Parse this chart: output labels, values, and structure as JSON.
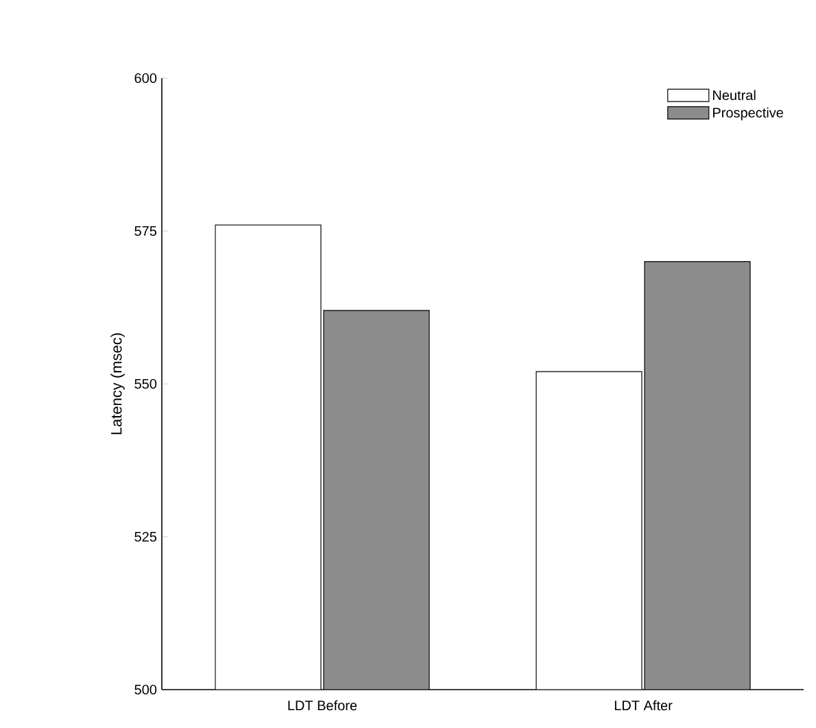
{
  "chart_data": {
    "type": "bar",
    "ylabel": "Latency (msec)",
    "categories": [
      "LDT Before",
      "LDT After"
    ],
    "series": [
      {
        "name": "Neutral",
        "color": "#ffffff",
        "values": [
          576,
          552
        ]
      },
      {
        "name": "Prospective",
        "color": "#8c8c8c",
        "values": [
          562,
          570
        ]
      }
    ],
    "ylim": [
      500,
      600
    ],
    "yticks": [
      500,
      525,
      550,
      575,
      600
    ],
    "legend": "top right"
  }
}
